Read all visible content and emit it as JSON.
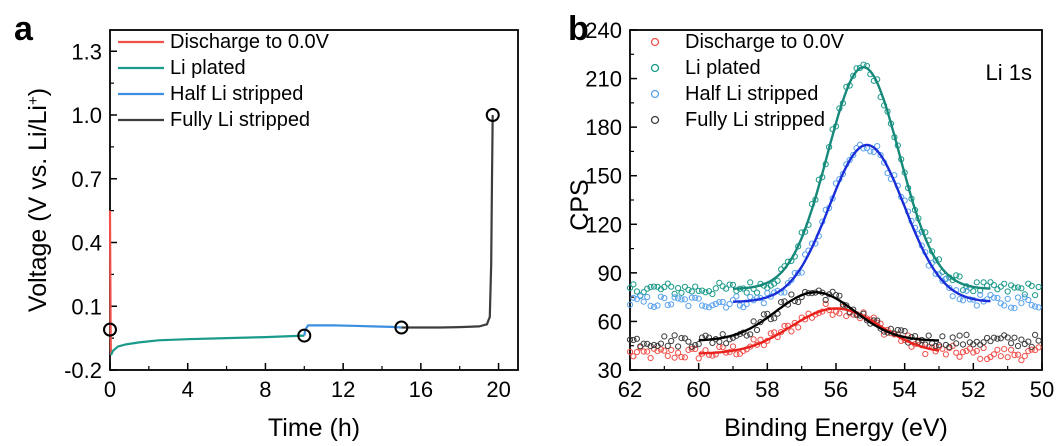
{
  "figure": {
    "panels": [
      "a",
      "b"
    ]
  },
  "chart_data": [
    {
      "type": "line",
      "panel_label": "a",
      "xlabel": "Time (h)",
      "ylabel": "Voltage (V vs. Li/Li+)",
      "ylabel_main": "Voltage (V vs. Li/Li",
      "ylabel_sup": "+",
      "ylabel_end": ")",
      "xlim": [
        0,
        21
      ],
      "ylim": [
        -0.2,
        1.4
      ],
      "xticks": [
        0,
        4,
        8,
        12,
        16,
        20
      ],
      "xtick_labels": [
        "0",
        "4",
        "8",
        "12",
        "16",
        "20"
      ],
      "yticks": [
        -0.2,
        0.1,
        0.4,
        0.7,
        1.0,
        1.3
      ],
      "ytick_labels": [
        "-0.2",
        "0.1",
        "0.4",
        "0.7",
        "1.0",
        "1.3"
      ],
      "legend_position": "top-left",
      "series": [
        {
          "name": "Discharge to 0.0V",
          "color": "#f0504a",
          "points": [
            [
              0.0,
              0.55
            ],
            [
              0.01,
              0.35
            ],
            [
              0.02,
              0.2
            ],
            [
              0.03,
              0.0
            ],
            [
              0.04,
              -0.1
            ],
            [
              0.05,
              -0.13
            ]
          ]
        },
        {
          "name": "Li plated",
          "color": "#1a9a8a",
          "points": [
            [
              0.05,
              -0.13
            ],
            [
              0.15,
              -0.11
            ],
            [
              0.4,
              -0.09
            ],
            [
              0.8,
              -0.08
            ],
            [
              1.5,
              -0.07
            ],
            [
              2.5,
              -0.06
            ],
            [
              4.0,
              -0.055
            ],
            [
              6.0,
              -0.05
            ],
            [
              8.0,
              -0.045
            ],
            [
              10.0,
              -0.038
            ]
          ]
        },
        {
          "name": "Half Li stripped",
          "color": "#3c8fe0",
          "points": [
            [
              10.0,
              -0.038
            ],
            [
              10.05,
              -0.01
            ],
            [
              10.2,
              0.01
            ],
            [
              10.6,
              0.01
            ],
            [
              11.5,
              0.01
            ],
            [
              12.5,
              0.008
            ],
            [
              13.5,
              0.005
            ],
            [
              14.5,
              0.003
            ],
            [
              15.0,
              0.0
            ]
          ]
        },
        {
          "name": "Fully Li stripped",
          "color": "#3d3d3d",
          "points": [
            [
              15.0,
              0.0
            ],
            [
              16.0,
              0.0
            ],
            [
              17.0,
              0.0
            ],
            [
              18.0,
              0.002
            ],
            [
              19.0,
              0.005
            ],
            [
              19.4,
              0.015
            ],
            [
              19.55,
              0.05
            ],
            [
              19.62,
              0.3
            ],
            [
              19.66,
              0.7
            ],
            [
              19.7,
              1.0
            ]
          ]
        }
      ],
      "markers": [
        [
          0.0,
          -0.01
        ],
        [
          10.0,
          -0.038
        ],
        [
          15.0,
          0.0
        ],
        [
          19.7,
          1.0
        ]
      ]
    },
    {
      "type": "scatter",
      "panel_label": "b",
      "xlabel": "Binding Energy (eV)",
      "ylabel": "CPS",
      "xlim": [
        62,
        50
      ],
      "x_reversed": true,
      "ylim": [
        30,
        240
      ],
      "xticks": [
        62,
        60,
        58,
        56,
        54,
        52,
        50
      ],
      "xtick_labels": [
        "62",
        "60",
        "58",
        "56",
        "54",
        "52",
        "50"
      ],
      "yticks": [
        30,
        60,
        90,
        120,
        150,
        180,
        210,
        240
      ],
      "ytick_labels": [
        "30",
        "60",
        "90",
        "120",
        "150",
        "180",
        "210",
        "240"
      ],
      "annotation": "Li 1s",
      "legend_position": "top-left",
      "series": [
        {
          "name": "Discharge to 0.0V",
          "color": "#f0504a",
          "fit_color": "#e8211c",
          "baseline": 40,
          "amp": 28,
          "center": 56.0,
          "width": 1.3,
          "noise": 4,
          "fit_range": [
            60,
            53
          ]
        },
        {
          "name": "Li plated",
          "color": "#1a9a8a",
          "fit_color": "#16897b",
          "baseline": 80,
          "amp": 137,
          "center": 55.2,
          "width": 1.05,
          "noise": 4,
          "fit_range": [
            59,
            51.5
          ]
        },
        {
          "name": "Half Li stripped",
          "color": "#5aa2ee",
          "fit_color": "#1a2ed8",
          "baseline": 72,
          "amp": 97,
          "center": 55.1,
          "width": 1.1,
          "noise": 4,
          "fit_range": [
            59,
            51.5
          ]
        },
        {
          "name": "Fully Li stripped",
          "color": "#3d3d3d",
          "fit_color": "#000000",
          "baseline": 48,
          "amp": 30,
          "center": 56.6,
          "width": 1.15,
          "noise": 4,
          "fit_range": [
            60,
            53
          ]
        }
      ]
    }
  ]
}
